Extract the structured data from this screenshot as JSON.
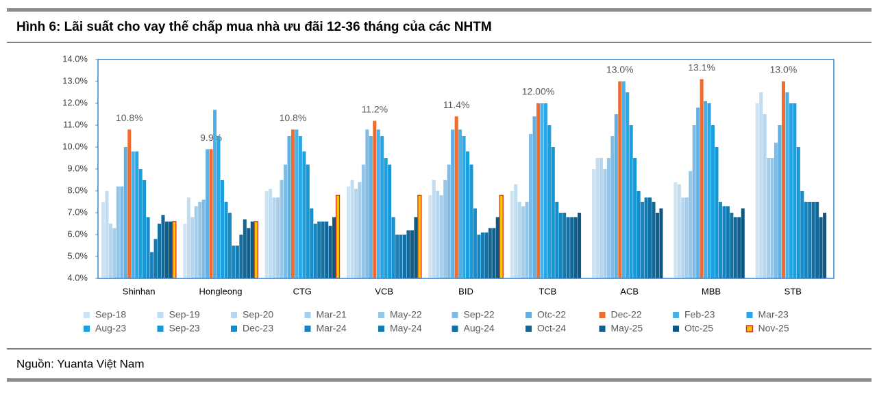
{
  "chart_data": {
    "type": "bar",
    "title": "Hình 6: Lãi suất cho vay thế chấp mua nhà ưu đãi 12-36 tháng của các NHTM",
    "source": "Nguồn: Yuanta Việt Nam",
    "categories": [
      "Shinhan",
      "Hongleong",
      "CTG",
      "VCB",
      "BID",
      "TCB",
      "ACB",
      "MBB",
      "STB"
    ],
    "ylim": [
      4,
      14
    ],
    "yticks": [
      {
        "value": 4,
        "label": "4.0%"
      },
      {
        "value": 5,
        "label": "5.0%"
      },
      {
        "value": 6,
        "label": "6.0%"
      },
      {
        "value": 7,
        "label": "7.0%"
      },
      {
        "value": 8,
        "label": "8.0%"
      },
      {
        "value": 9,
        "label": "9.0%"
      },
      {
        "value": 10,
        "label": "10.0%"
      },
      {
        "value": 11,
        "label": "11.0%"
      },
      {
        "value": 12,
        "label": "12.0%"
      },
      {
        "value": 13,
        "label": "13.0%"
      },
      {
        "value": 14,
        "label": "14.0%"
      }
    ],
    "series": [
      {
        "name": "Sep-18",
        "color": "#cfe4f3",
        "values": [
          7.5,
          6.5,
          8.0,
          8.2,
          7.8,
          8.0,
          9.0,
          8.4,
          12.0
        ]
      },
      {
        "name": "Sep-19",
        "color": "#c3ddf0",
        "values": [
          8.0,
          7.7,
          8.1,
          8.5,
          8.5,
          8.3,
          9.5,
          8.3,
          12.5
        ]
      },
      {
        "name": "Sep-20",
        "color": "#b6d6ee",
        "values": [
          6.5,
          6.8,
          7.7,
          8.1,
          8.0,
          7.5,
          9.5,
          7.7,
          11.5
        ]
      },
      {
        "name": "Mar-21",
        "color": "#a6ceea",
        "values": [
          6.3,
          7.3,
          7.7,
          8.4,
          7.8,
          7.3,
          9.0,
          7.7,
          9.5
        ]
      },
      {
        "name": "May-22",
        "color": "#95c5e7",
        "values": [
          8.2,
          7.5,
          8.5,
          9.2,
          8.5,
          7.5,
          9.5,
          8.9,
          9.5
        ]
      },
      {
        "name": "Sep-22",
        "color": "#7fbbe4",
        "values": [
          8.2,
          7.6,
          9.2,
          10.8,
          9.2,
          10.6,
          10.5,
          11.0,
          10.2
        ]
      },
      {
        "name": "Otc-22",
        "color": "#5fb0e4",
        "values": [
          10.0,
          9.9,
          10.5,
          10.5,
          10.8,
          11.4,
          11.5,
          11.8,
          11.0
        ]
      },
      {
        "name": "Dec-22",
        "color": "#ed6c2e",
        "values": [
          10.8,
          9.9,
          10.8,
          11.2,
          11.4,
          12.0,
          13.0,
          13.1,
          13.0
        ],
        "value_labels": [
          "10.8%",
          "9.9%",
          "10.8%",
          "11.2%",
          "11.4%",
          "12.00%",
          "13.0%",
          "13.1%",
          "13.0%"
        ]
      },
      {
        "name": "Feb-23",
        "color": "#4cb0e8",
        "values": [
          9.8,
          11.7,
          10.8,
          10.8,
          10.8,
          12.0,
          13.0,
          12.1,
          12.5
        ]
      },
      {
        "name": "Mar-23",
        "color": "#2aa6e5",
        "values": [
          9.8,
          10.5,
          10.5,
          10.5,
          10.5,
          12.0,
          12.5,
          12.0,
          12.0
        ]
      },
      {
        "name": "Aug-23",
        "color": "#1a9fdf",
        "values": [
          9.0,
          8.5,
          9.8,
          9.5,
          9.8,
          11.0,
          11.0,
          11.0,
          12.0
        ]
      },
      {
        "name": "Sep-23",
        "color": "#1897d5",
        "values": [
          8.5,
          7.5,
          9.2,
          9.2,
          9.2,
          10.0,
          9.5,
          10.0,
          10.0
        ]
      },
      {
        "name": "Dec-23",
        "color": "#168ccb",
        "values": [
          6.8,
          7.0,
          7.2,
          6.8,
          7.2,
          7.5,
          8.0,
          7.5,
          8.0
        ]
      },
      {
        "name": "Mar-24",
        "color": "#1583bd",
        "values": [
          5.2,
          5.5,
          6.5,
          6.0,
          6.0,
          7.0,
          7.5,
          7.3,
          7.5
        ]
      },
      {
        "name": "May-24",
        "color": "#147aaf",
        "values": [
          5.8,
          5.5,
          6.6,
          6.0,
          6.1,
          7.0,
          7.7,
          7.3,
          7.5
        ]
      },
      {
        "name": "Aug-24",
        "color": "#1370a3",
        "values": [
          6.5,
          6.0,
          6.6,
          6.0,
          6.1,
          6.8,
          7.7,
          7.0,
          7.5
        ]
      },
      {
        "name": "Oct-24",
        "color": "#126797",
        "values": [
          6.9,
          6.7,
          6.6,
          6.2,
          6.3,
          6.8,
          7.5,
          6.8,
          7.5
        ]
      },
      {
        "name": "May-25",
        "color": "#105f8b",
        "values": [
          6.6,
          6.3,
          6.4,
          6.2,
          6.3,
          6.8,
          7.0,
          6.8,
          6.8
        ]
      },
      {
        "name": "Otc-25",
        "color": "#0f5680",
        "values": [
          6.6,
          6.6,
          6.8,
          6.8,
          6.8,
          7.0,
          7.2,
          7.2,
          7.0
        ]
      },
      {
        "name": "Nov-25",
        "color": "#f5c400",
        "values": [
          6.6,
          6.6,
          7.8,
          7.8,
          7.8,
          null,
          null,
          null,
          null
        ]
      }
    ]
  }
}
